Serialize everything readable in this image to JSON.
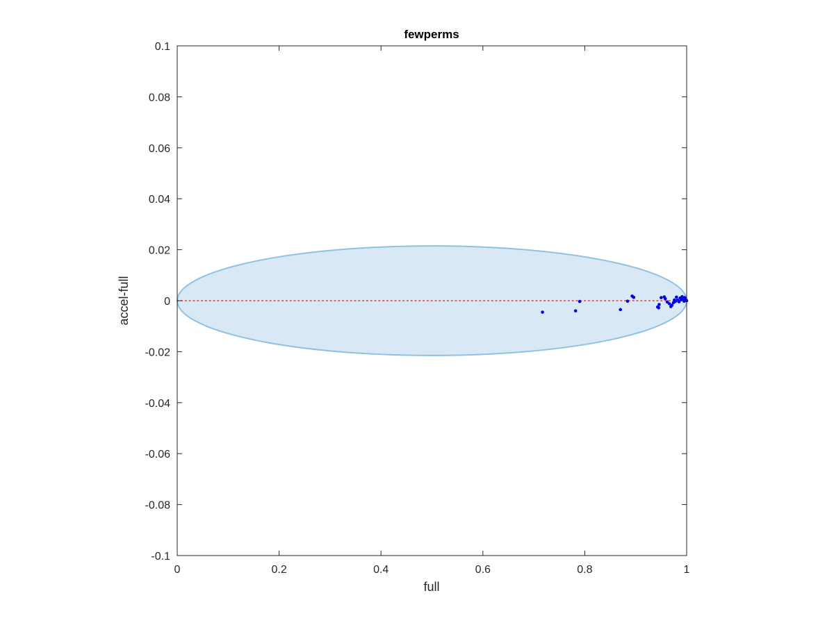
{
  "chart_data": {
    "type": "scatter",
    "title": "fewperms",
    "xlabel": "full",
    "ylabel": "accel-full",
    "xlim": [
      0,
      1
    ],
    "ylim": [
      -0.1,
      0.1
    ],
    "xticks": [
      0,
      0.2,
      0.4,
      0.6,
      0.8,
      1
    ],
    "xtick_labels": [
      "0",
      "0.2",
      "0.4",
      "0.6",
      "0.8",
      "1"
    ],
    "yticks": [
      -0.1,
      -0.08,
      -0.06,
      -0.04,
      -0.02,
      0,
      0.02,
      0.04,
      0.06,
      0.08,
      0.1
    ],
    "ytick_labels": [
      "-0.1",
      "-0.08",
      "-0.06",
      "-0.04",
      "-0.02",
      "0",
      "0.02",
      "0.04",
      "0.06",
      "0.08",
      "0.1"
    ],
    "grid": false,
    "legend": "none",
    "reference_line": {
      "y": 0,
      "color": "#e8302b",
      "style": "dotted"
    },
    "region": {
      "shape": "ellipse",
      "center": [
        0.5,
        0
      ],
      "x_radius": 0.5,
      "y_radius": 0.0215,
      "fill": "#d8e8f5",
      "stroke": "#8fc1e3"
    },
    "series": [
      {
        "color": "#0000ee",
        "points": [
          [
            0.717,
            -0.0045
          ],
          [
            0.782,
            -0.004
          ],
          [
            0.79,
            -0.0003
          ],
          [
            0.87,
            -0.0035
          ],
          [
            0.884,
            -0.0002
          ],
          [
            0.893,
            0.0018
          ],
          [
            0.896,
            0.0013
          ],
          [
            0.943,
            -0.0025
          ],
          [
            0.945,
            -0.0028
          ],
          [
            0.946,
            -0.0015
          ],
          [
            0.95,
            0.0012
          ],
          [
            0.956,
            0.0015
          ],
          [
            0.958,
            0.0008
          ],
          [
            0.962,
            -0.0005
          ],
          [
            0.966,
            -0.0012
          ],
          [
            0.969,
            -0.0023
          ],
          [
            0.971,
            -0.0018
          ],
          [
            0.974,
            -0.0008
          ],
          [
            0.976,
            0.0003
          ],
          [
            0.978,
            -0.0003
          ],
          [
            0.98,
            0.0014
          ],
          [
            0.982,
            0.0002
          ],
          [
            0.985,
            -0.0004
          ],
          [
            0.987,
            0.001
          ],
          [
            0.989,
            0.0004
          ],
          [
            0.991,
            0.0016
          ],
          [
            0.993,
            0.0008
          ],
          [
            0.995,
            -0.0002
          ],
          [
            0.996,
            0.0012
          ],
          [
            0.998,
            0.0005
          ],
          [
            0.999,
            0.0002
          ],
          [
            1.0,
            0.0
          ]
        ]
      }
    ]
  }
}
